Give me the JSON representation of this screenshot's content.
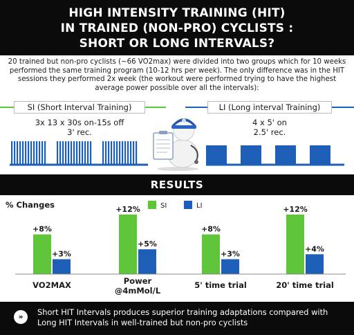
{
  "header": {
    "line1": "HIGH INTENSITY TRAINING (HIT)",
    "line2": "IN TRAINED (NON-PRO) CYCLISTS :",
    "line3": "SHORT OR LONG INTERVALS?"
  },
  "intro": "20 trained but non-pro cyclists (~66 VO2max) were divided into two groups which for 10 weeks performed the same training program (10-12 hrs per week). The only difference was in the HIT sessions they performed 2x week (the workout were performed trying to have the highest average power possible over all the intervals):",
  "si": {
    "label": "SI (Short Interval Training)",
    "protocol_line1": "3x 13 x 30s on-15s off",
    "protocol_line2": "3' rec."
  },
  "li": {
    "label": "LI (Long interval Training)",
    "protocol_line1": "4 x 5' on",
    "protocol_line2": "2.5' rec."
  },
  "results_title": "RESULTS",
  "colors": {
    "si": "#5ec43a",
    "li": "#1d5fb6",
    "dark": "#0b0b0b"
  },
  "chart_data": {
    "type": "bar",
    "ylabel": "% Changes",
    "categories": [
      "VO2MAX",
      "Power @4mMol/L",
      "5' time trial",
      "20' time trial"
    ],
    "series": [
      {
        "name": "SI",
        "values": [
          8,
          12,
          8,
          12
        ],
        "labels": [
          "+8%",
          "+12%",
          "+8%",
          "+12%"
        ]
      },
      {
        "name": "LI",
        "values": [
          3,
          5,
          3,
          4
        ],
        "labels": [
          "+3%",
          "+5%",
          "+3%",
          "+4%"
        ]
      }
    ],
    "ylim": [
      0,
      12
    ],
    "grid": false,
    "legend": "top-center"
  },
  "footer": {
    "icon": "double-chevron-right-icon",
    "text": "Short HIT Intervals produces superior training adaptations compared with Long HIT Intervals in well-trained but non-pro cyclists"
  }
}
